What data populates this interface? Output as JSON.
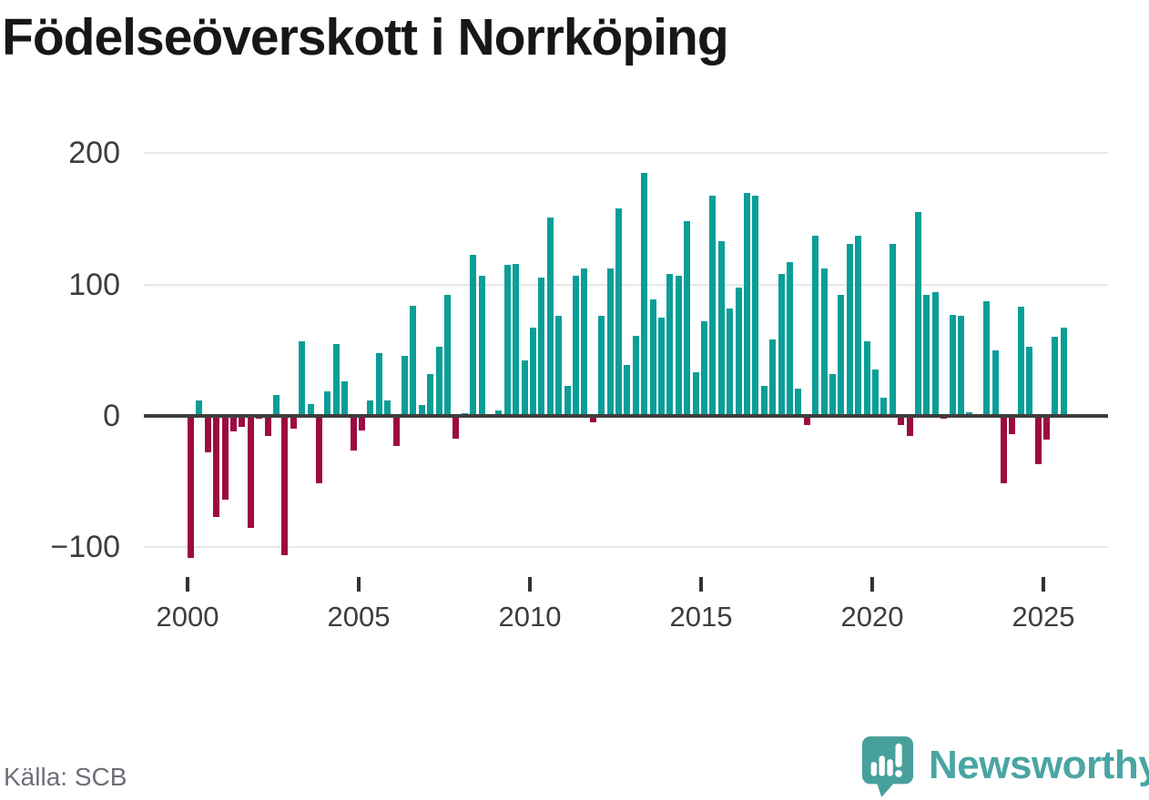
{
  "title": "Födelseöverskott i Norrköping",
  "source_label": "Källa: SCB",
  "brand": {
    "name": "Newsworthy",
    "logo_icon": "speech-bubble-bar-chart-exclamation"
  },
  "chart_data": {
    "type": "bar",
    "title": "Födelseöverskott i Norrköping",
    "x_start": {
      "year": 2000,
      "quarter": 1
    },
    "frequency": "quarterly",
    "values": [
      -108,
      12,
      -28,
      -77,
      -64,
      -12,
      -8,
      -85,
      -2,
      -15,
      16,
      -106,
      -10,
      57,
      9,
      -51,
      19,
      55,
      26,
      -26,
      -11,
      12,
      48,
      12,
      -23,
      46,
      84,
      8,
      32,
      53,
      92,
      -17,
      2,
      123,
      107,
      0,
      4,
      115,
      116,
      42,
      67,
      105,
      151,
      76,
      23,
      107,
      112,
      -5,
      76,
      112,
      158,
      39,
      61,
      185,
      89,
      75,
      108,
      107,
      148,
      33,
      72,
      168,
      133,
      82,
      98,
      170,
      168,
      23,
      58,
      108,
      117,
      21,
      -7,
      137,
      112,
      32,
      92,
      131,
      137,
      57,
      35,
      14,
      131,
      -7,
      -15,
      155,
      92,
      94,
      -2,
      77,
      76,
      3,
      0,
      87,
      50,
      -51,
      -14,
      83,
      53,
      -37,
      -18,
      60,
      67
    ],
    "y_ticks": [
      {
        "value": 200,
        "label": "200"
      },
      {
        "value": 100,
        "label": "100"
      },
      {
        "value": 0,
        "label": "0"
      },
      {
        "value": -100,
        "label": "−100"
      }
    ],
    "x_ticks": [
      {
        "year": 2000,
        "label": "2000"
      },
      {
        "year": 2005,
        "label": "2005"
      },
      {
        "year": 2010,
        "label": "2010"
      },
      {
        "year": 2015,
        "label": "2015"
      },
      {
        "year": 2020,
        "label": "2020"
      },
      {
        "year": 2025,
        "label": "2025"
      }
    ],
    "ylim": [
      -120,
      215
    ],
    "grid": true,
    "legend": false,
    "colors": {
      "positive": "#0b9e98",
      "negative": "#9c0b41",
      "zero_line": "#3e3e3e",
      "gridline": "#e7e7e7",
      "brand_teal": "#4aa5a3"
    }
  }
}
